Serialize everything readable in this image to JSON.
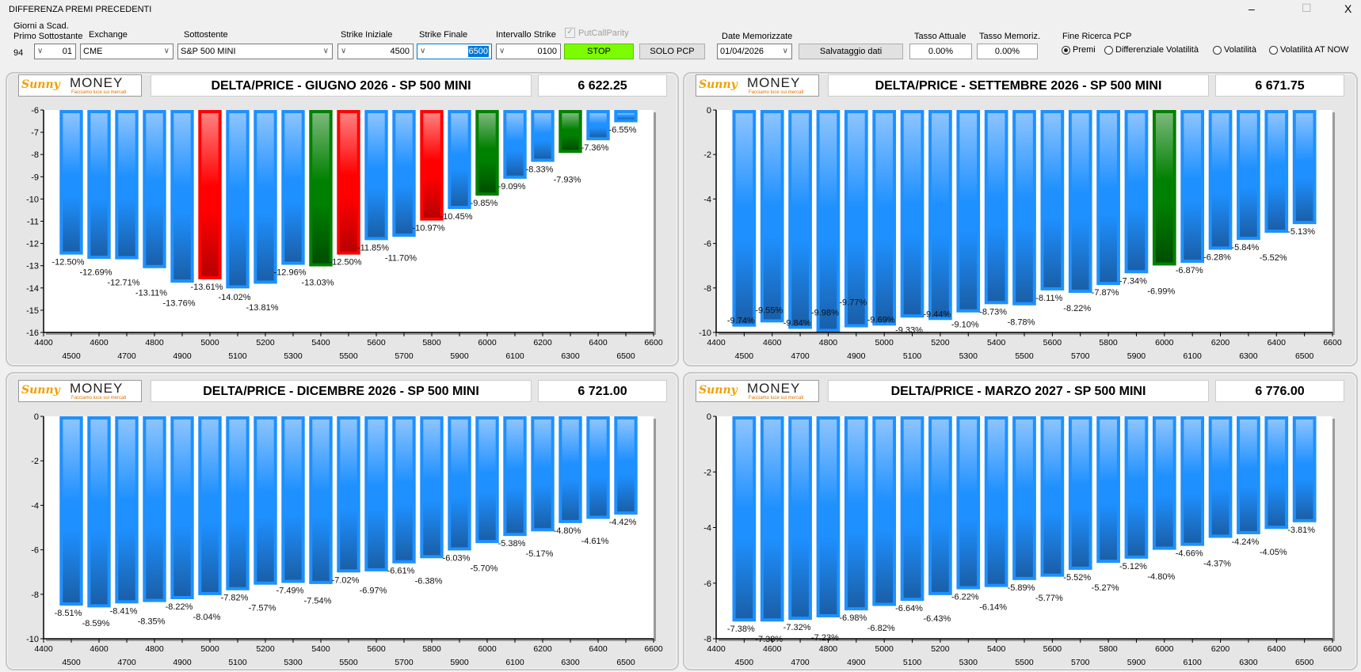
{
  "window": {
    "title": "DIFFERENZA PREMI PRECEDENTI",
    "minimize": "–",
    "maximize": "☐",
    "close": "X"
  },
  "controls": {
    "giorni_label_1": "Giorni a Scad.",
    "giorni_label_2": "Primo Sottostante",
    "giorni_value": "94",
    "primo_value": "01",
    "exchange_label": "Exchange",
    "exchange_value": "CME",
    "sottostante_label": "Sottostente",
    "sottostante_value": "S&P 500 MINI",
    "strike_iniziale_label": "Strike Iniziale",
    "strike_iniziale_value": "4500",
    "strike_finale_label": "Strike Finale",
    "strike_finale_value": "6500",
    "intervallo_label": "Intervallo Strike",
    "intervallo_value": "0100",
    "putcallparity_label": "PutCallParity",
    "putcallparity_checked": true,
    "stop_label": "STOP",
    "stop_color": "#7cfc00",
    "solo_pcp_label": "SOLO PCP",
    "date_label": "Date Memorizzate",
    "date_value": "01/04/2026",
    "salvataggio_label": "Salvataggio dati",
    "tasso_attuale_label": "Tasso Attuale",
    "tasso_attuale_value": "0.00%",
    "tasso_memoriz_label": "Tasso Memoriz.",
    "tasso_memoriz_value": "0.00%",
    "fine_ricerca_label": "Fine Ricerca PCP",
    "radios": [
      {
        "label": "Premi",
        "selected": true
      },
      {
        "label": "Differenziale Volatilità",
        "selected": false
      },
      {
        "label": "Volatilità",
        "selected": false
      },
      {
        "label": "Volatilità AT NOW",
        "selected": false
      }
    ]
  },
  "logo": {
    "brand_1": "Sunny",
    "brand_2": "MONEY",
    "tagline": "Facciamo luce sui mercati"
  },
  "colors": {
    "blue": "#1e90ff",
    "red": "#ff0000",
    "green": "#008000"
  },
  "chart_data": [
    {
      "type": "bar",
      "title": "DELTA/PRICE - GIUGNO 2026 - SP 500 MINI",
      "price": "6 622.25",
      "categories": [
        4500,
        4600,
        4700,
        4800,
        4900,
        5000,
        5100,
        5200,
        5300,
        5400,
        5500,
        5600,
        5700,
        5800,
        5900,
        6000,
        6100,
        6200,
        6300,
        6400,
        6500
      ],
      "values": [
        -12.5,
        -12.69,
        -12.71,
        -13.11,
        -13.76,
        -13.61,
        -14.02,
        -13.81,
        -12.96,
        -13.03,
        -12.5,
        -11.85,
        -11.7,
        -10.97,
        -10.45,
        -9.85,
        -9.09,
        -8.33,
        -7.93,
        -7.36,
        -6.55
      ],
      "labels": [
        "-12.50%",
        "-12.69%",
        "-12.71%",
        "-13.11%",
        "-13.76%",
        "-13.61%",
        "-14.02%",
        "-13.81%",
        "-12.96%",
        "-13.03%",
        "-12.50%",
        "-11.85%",
        "-11.70%",
        "-10.97%",
        "-10.45%",
        "-9.85%",
        "-9.09%",
        "-8.33%",
        "-7.93%",
        "-7.36%",
        "-6.55%"
      ],
      "bar_colors": [
        "blue",
        "blue",
        "blue",
        "blue",
        "blue",
        "red",
        "blue",
        "blue",
        "blue",
        "green",
        "red",
        "blue",
        "blue",
        "red",
        "blue",
        "green",
        "blue",
        "blue",
        "green",
        "blue",
        "blue"
      ],
      "xlim": [
        4400,
        6600
      ],
      "xticks": [
        4400,
        4500,
        4600,
        4700,
        4800,
        4900,
        5000,
        5100,
        5200,
        5300,
        5400,
        5500,
        5600,
        5700,
        5800,
        5900,
        6000,
        6100,
        6200,
        6300,
        6400,
        6500,
        6600
      ],
      "ylim": [
        -16,
        -6
      ],
      "yticks": [
        -6,
        -7,
        -8,
        -9,
        -10,
        -11,
        -12,
        -13,
        -14,
        -15,
        -16
      ]
    },
    {
      "type": "bar",
      "title": "DELTA/PRICE - SETTEMBRE 2026 - SP 500 MINI",
      "price": "6 671.75",
      "categories": [
        4500,
        4600,
        4700,
        4800,
        4900,
        5000,
        5100,
        5200,
        5300,
        5400,
        5500,
        5600,
        5700,
        5800,
        5900,
        6000,
        6100,
        6200,
        6300,
        6400,
        6500
      ],
      "values": [
        -9.74,
        -9.55,
        -9.84,
        -9.98,
        -9.77,
        -9.69,
        -9.33,
        -9.44,
        -9.1,
        -8.73,
        -8.78,
        -8.11,
        -8.22,
        -7.87,
        -7.34,
        -6.99,
        -6.87,
        -6.28,
        -5.84,
        -5.52,
        -5.13
      ],
      "labels": [
        "-9.74%",
        "-9.55%",
        "-9.84%",
        "-9.98%",
        "-9.77%",
        "-9.69%",
        "-9.33%",
        "-9.44%",
        "-9.10%",
        "-8.73%",
        "-8.78%",
        "-8.11%",
        "-8.22%",
        "-7.87%",
        "-7.34%",
        "-6.99%",
        "-6.87%",
        "-6.28%",
        "-5.84%",
        "-5.52%",
        "-5.13%"
      ],
      "bar_colors": [
        "blue",
        "blue",
        "blue",
        "blue",
        "blue",
        "blue",
        "blue",
        "blue",
        "blue",
        "blue",
        "blue",
        "blue",
        "blue",
        "blue",
        "blue",
        "green",
        "blue",
        "blue",
        "blue",
        "blue",
        "blue"
      ],
      "xlim": [
        4400,
        6600
      ],
      "xticks": [
        4400,
        4500,
        4600,
        4700,
        4800,
        4900,
        5000,
        5100,
        5200,
        5300,
        5400,
        5500,
        5600,
        5700,
        5800,
        5900,
        6000,
        6100,
        6200,
        6300,
        6400,
        6500,
        6600
      ],
      "ylim": [
        -10,
        0
      ],
      "yticks": [
        0,
        -2,
        -4,
        -6,
        -8,
        -10
      ]
    },
    {
      "type": "bar",
      "title": "DELTA/PRICE - DICEMBRE 2026 - SP 500 MINI",
      "price": "6 721.00",
      "categories": [
        4500,
        4600,
        4700,
        4800,
        4900,
        5000,
        5100,
        5200,
        5300,
        5400,
        5500,
        5600,
        5700,
        5800,
        5900,
        6000,
        6100,
        6200,
        6300,
        6400,
        6500
      ],
      "values": [
        -8.51,
        -8.59,
        -8.41,
        -8.35,
        -8.22,
        -8.04,
        -7.82,
        -7.57,
        -7.49,
        -7.54,
        -7.02,
        -6.97,
        -6.61,
        -6.38,
        -6.03,
        -5.7,
        -5.38,
        -5.17,
        -4.8,
        -4.61,
        -4.42
      ],
      "labels": [
        "-8.51%",
        "-8.59%",
        "-8.41%",
        "-8.35%",
        "-8.22%",
        "-8.04%",
        "-7.82%",
        "-7.57%",
        "-7.49%",
        "-7.54%",
        "-7.02%",
        "-6.97%",
        "-6.61%",
        "-6.38%",
        "-6.03%",
        "-5.70%",
        "-5.38%",
        "-5.17%",
        "-4.80%",
        "-4.61%",
        "-4.42%"
      ],
      "bar_colors": [
        "blue",
        "blue",
        "blue",
        "blue",
        "blue",
        "blue",
        "blue",
        "blue",
        "blue",
        "blue",
        "blue",
        "blue",
        "blue",
        "blue",
        "blue",
        "blue",
        "blue",
        "blue",
        "blue",
        "blue",
        "blue"
      ],
      "xlim": [
        4400,
        6600
      ],
      "xticks": [
        4400,
        4500,
        4600,
        4700,
        4800,
        4900,
        5000,
        5100,
        5200,
        5300,
        5400,
        5500,
        5600,
        5700,
        5800,
        5900,
        6000,
        6100,
        6200,
        6300,
        6400,
        6500,
        6600
      ],
      "ylim": [
        -10,
        0
      ],
      "yticks": [
        0,
        -2,
        -4,
        -6,
        -8,
        -10
      ]
    },
    {
      "type": "bar",
      "title": "DELTA/PRICE - MARZO 2027 - SP 500 MINI",
      "price": "6 776.00",
      "categories": [
        4500,
        4600,
        4700,
        4800,
        4900,
        5000,
        5100,
        5200,
        5300,
        5400,
        5500,
        5600,
        5700,
        5800,
        5900,
        6000,
        6100,
        6200,
        6300,
        6400,
        6500
      ],
      "values": [
        -7.38,
        -7.38,
        -7.32,
        -7.23,
        -6.98,
        -6.82,
        -6.64,
        -6.43,
        -6.22,
        -6.14,
        -5.89,
        -5.77,
        -5.52,
        -5.27,
        -5.12,
        -4.8,
        -4.66,
        -4.37,
        -4.24,
        -4.05,
        -3.81
      ],
      "labels": [
        "-7.38%",
        "-7.38%",
        "-7.32%",
        "-7.23%",
        "-6.98%",
        "-6.82%",
        "-6.64%",
        "-6.43%",
        "-6.22%",
        "-6.14%",
        "-5.89%",
        "-5.77%",
        "-5.52%",
        "-5.27%",
        "-5.12%",
        "-4.80%",
        "-4.66%",
        "-4.37%",
        "-4.24%",
        "-4.05%",
        "-3.81%"
      ],
      "bar_colors": [
        "blue",
        "blue",
        "blue",
        "blue",
        "blue",
        "blue",
        "blue",
        "blue",
        "blue",
        "blue",
        "blue",
        "blue",
        "blue",
        "blue",
        "blue",
        "blue",
        "blue",
        "blue",
        "blue",
        "blue",
        "blue"
      ],
      "xlim": [
        4400,
        6600
      ],
      "xticks": [
        4400,
        4500,
        4600,
        4700,
        4800,
        4900,
        5000,
        5100,
        5200,
        5300,
        5400,
        5500,
        5600,
        5700,
        5800,
        5900,
        6000,
        6100,
        6200,
        6300,
        6400,
        6500,
        6600
      ],
      "ylim": [
        -8,
        0
      ],
      "yticks": [
        0,
        -2,
        -4,
        -6,
        -8
      ]
    }
  ]
}
